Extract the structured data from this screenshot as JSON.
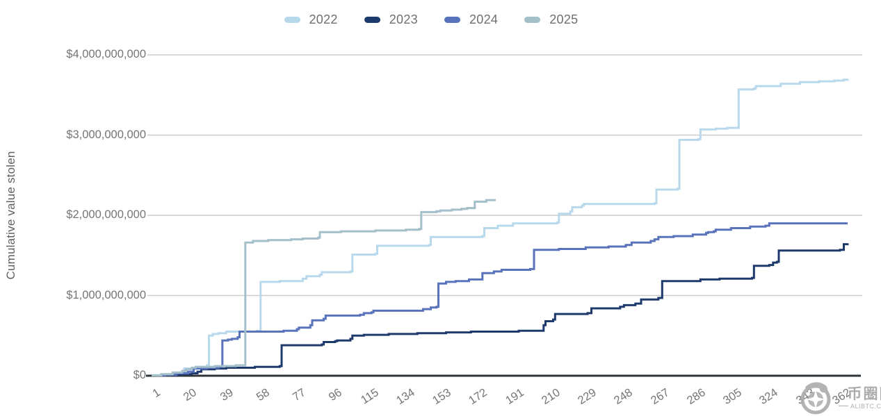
{
  "watermark": {
    "cjk_text": "币圈网",
    "site": "ALIBTC.COM"
  },
  "chart_data": {
    "type": "line",
    "title": "",
    "xlabel": "",
    "ylabel": "Cumulative value stolen",
    "line_style": "step-after",
    "grid": "horizontal",
    "legend_position": "top-center",
    "x_range_days": [
      1,
      365
    ],
    "y_range_usd": [
      0,
      4000000000
    ],
    "unit_note": "series point values are USD billions, x is day of year",
    "x_tick_days": [
      1,
      20,
      39,
      58,
      77,
      96,
      115,
      134,
      153,
      172,
      191,
      210,
      229,
      248,
      267,
      286,
      305,
      324,
      343,
      362
    ],
    "y_ticks": [
      {
        "value": 0,
        "label": "$0"
      },
      {
        "value": 1,
        "label": "$1,000,000,000"
      },
      {
        "value": 2,
        "label": "$2,000,000,000"
      },
      {
        "value": 3,
        "label": "$3,000,000,000"
      },
      {
        "value": 4,
        "label": "$4,000,000,000"
      }
    ],
    "series": [
      {
        "name": "2022",
        "color": "#b7d9eb",
        "points": [
          [
            1,
            0.005
          ],
          [
            6,
            0.01
          ],
          [
            11,
            0.02
          ],
          [
            16,
            0.03
          ],
          [
            18,
            0.09
          ],
          [
            23,
            0.1
          ],
          [
            28,
            0.11
          ],
          [
            30,
            0.13
          ],
          [
            31,
            0.5
          ],
          [
            33,
            0.52
          ],
          [
            36,
            0.53
          ],
          [
            40,
            0.55
          ],
          [
            56,
            0.56
          ],
          [
            58,
            1.17
          ],
          [
            68,
            1.18
          ],
          [
            80,
            1.21
          ],
          [
            82,
            1.24
          ],
          [
            89,
            1.26
          ],
          [
            90,
            1.29
          ],
          [
            105,
            1.3
          ],
          [
            106,
            1.51
          ],
          [
            118,
            1.52
          ],
          [
            119,
            1.62
          ],
          [
            146,
            1.63
          ],
          [
            147,
            1.73
          ],
          [
            174,
            1.74
          ],
          [
            175,
            1.84
          ],
          [
            182,
            1.87
          ],
          [
            190,
            1.9
          ],
          [
            213,
            1.91
          ],
          [
            214,
            2.02
          ],
          [
            220,
            2.05
          ],
          [
            221,
            2.1
          ],
          [
            226,
            2.12
          ],
          [
            227,
            2.14
          ],
          [
            264,
            2.15
          ],
          [
            265,
            2.32
          ],
          [
            276,
            2.33
          ],
          [
            277,
            2.94
          ],
          [
            287,
            2.95
          ],
          [
            288,
            3.07
          ],
          [
            296,
            3.08
          ],
          [
            302,
            3.09
          ],
          [
            307,
            3.09
          ],
          [
            308,
            3.57
          ],
          [
            316,
            3.58
          ],
          [
            317,
            3.61
          ],
          [
            330,
            3.64
          ],
          [
            340,
            3.66
          ],
          [
            350,
            3.67
          ],
          [
            358,
            3.68
          ],
          [
            363,
            3.69
          ],
          [
            365,
            3.7
          ]
        ]
      },
      {
        "name": "2023",
        "color": "#1e3a6d",
        "points": [
          [
            1,
            0.004
          ],
          [
            8,
            0.01
          ],
          [
            16,
            0.02
          ],
          [
            22,
            0.03
          ],
          [
            25,
            0.05
          ],
          [
            27,
            0.08
          ],
          [
            34,
            0.09
          ],
          [
            40,
            0.1
          ],
          [
            55,
            0.11
          ],
          [
            68,
            0.12
          ],
          [
            69,
            0.38
          ],
          [
            90,
            0.39
          ],
          [
            91,
            0.42
          ],
          [
            97,
            0.43
          ],
          [
            98,
            0.44
          ],
          [
            105,
            0.46
          ],
          [
            106,
            0.5
          ],
          [
            112,
            0.51
          ],
          [
            125,
            0.52
          ],
          [
            140,
            0.53
          ],
          [
            155,
            0.54
          ],
          [
            168,
            0.55
          ],
          [
            193,
            0.56
          ],
          [
            206,
            0.63
          ],
          [
            207,
            0.68
          ],
          [
            211,
            0.7
          ],
          [
            212,
            0.77
          ],
          [
            229,
            0.78
          ],
          [
            231,
            0.84
          ],
          [
            246,
            0.86
          ],
          [
            248,
            0.88
          ],
          [
            254,
            0.9
          ],
          [
            257,
            0.95
          ],
          [
            266,
            0.97
          ],
          [
            268,
            1.18
          ],
          [
            288,
            1.2
          ],
          [
            298,
            1.21
          ],
          [
            315,
            1.22
          ],
          [
            316,
            1.37
          ],
          [
            324,
            1.38
          ],
          [
            326,
            1.41
          ],
          [
            328,
            1.42
          ],
          [
            329,
            1.56
          ],
          [
            361,
            1.57
          ],
          [
            363,
            1.64
          ],
          [
            365,
            1.65
          ]
        ]
      },
      {
        "name": "2024",
        "color": "#5873bb",
        "points": [
          [
            1,
            0.004
          ],
          [
            8,
            0.01
          ],
          [
            14,
            0.03
          ],
          [
            20,
            0.05
          ],
          [
            23,
            0.09
          ],
          [
            30,
            0.1
          ],
          [
            36,
            0.11
          ],
          [
            38,
            0.44
          ],
          [
            41,
            0.45
          ],
          [
            43,
            0.46
          ],
          [
            46,
            0.48
          ],
          [
            47,
            0.55
          ],
          [
            70,
            0.56
          ],
          [
            77,
            0.58
          ],
          [
            78,
            0.6
          ],
          [
            84,
            0.63
          ],
          [
            85,
            0.69
          ],
          [
            91,
            0.71
          ],
          [
            92,
            0.75
          ],
          [
            110,
            0.76
          ],
          [
            112,
            0.78
          ],
          [
            116,
            0.79
          ],
          [
            117,
            0.81
          ],
          [
            143,
            0.83
          ],
          [
            147,
            0.85
          ],
          [
            150,
            0.86
          ],
          [
            151,
            1.15
          ],
          [
            155,
            1.17
          ],
          [
            160,
            1.18
          ],
          [
            167,
            1.2
          ],
          [
            174,
            1.28
          ],
          [
            180,
            1.3
          ],
          [
            184,
            1.32
          ],
          [
            199,
            1.33
          ],
          [
            201,
            1.57
          ],
          [
            214,
            1.58
          ],
          [
            228,
            1.6
          ],
          [
            240,
            1.61
          ],
          [
            249,
            1.63
          ],
          [
            252,
            1.66
          ],
          [
            262,
            1.68
          ],
          [
            264,
            1.7
          ],
          [
            266,
            1.73
          ],
          [
            274,
            1.74
          ],
          [
            284,
            1.76
          ],
          [
            291,
            1.78
          ],
          [
            292,
            1.79
          ],
          [
            295,
            1.8
          ],
          [
            296,
            1.82
          ],
          [
            304,
            1.84
          ],
          [
            314,
            1.86
          ],
          [
            322,
            1.87
          ],
          [
            324,
            1.9
          ],
          [
            365,
            1.9
          ]
        ]
      },
      {
        "name": "2025",
        "color": "#a3bfca",
        "points": [
          [
            1,
            0.004
          ],
          [
            6,
            0.02
          ],
          [
            12,
            0.04
          ],
          [
            17,
            0.06
          ],
          [
            19,
            0.08
          ],
          [
            22,
            0.1
          ],
          [
            24,
            0.11
          ],
          [
            34,
            0.12
          ],
          [
            45,
            0.13
          ],
          [
            49,
            0.13
          ],
          [
            50,
            1.66
          ],
          [
            54,
            1.68
          ],
          [
            62,
            1.69
          ],
          [
            74,
            1.7
          ],
          [
            80,
            1.71
          ],
          [
            88,
            1.72
          ],
          [
            89,
            1.79
          ],
          [
            100,
            1.8
          ],
          [
            118,
            1.81
          ],
          [
            134,
            1.82
          ],
          [
            141,
            1.83
          ],
          [
            142,
            2.04
          ],
          [
            150,
            2.05
          ],
          [
            152,
            2.06
          ],
          [
            158,
            2.07
          ],
          [
            163,
            2.08
          ],
          [
            166,
            2.09
          ],
          [
            170,
            2.17
          ],
          [
            176,
            2.19
          ],
          [
            181,
            2.19
          ]
        ]
      }
    ]
  }
}
